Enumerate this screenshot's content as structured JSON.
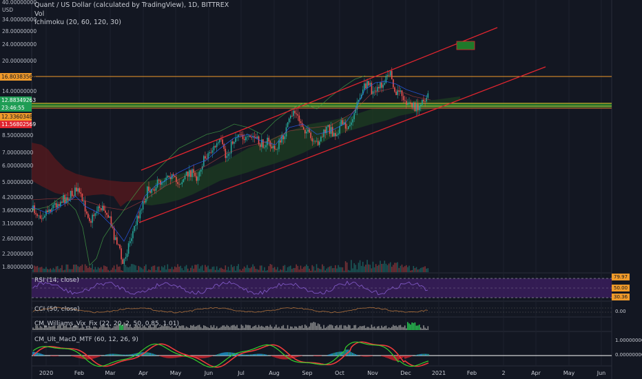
{
  "header": {
    "title": "Quant / US Dollar (calculated by TradingView), 1D, BITTREX",
    "volume_label": "Vol",
    "ichimoku_label": "Ichimoku (20, 60, 120, 30)"
  },
  "price_axis": {
    "currency": "USD",
    "ticks": [
      "40.00000000",
      "34.00000000",
      "28.00000000",
      "24.00000000",
      "20.00000000",
      "14.00000000",
      "8.50000000",
      "7.00000000",
      "6.00000000",
      "5.00000000",
      "4.20000000",
      "3.60000000",
      "3.10000000",
      "2.60000000",
      "2.20000000",
      "1.80000000"
    ],
    "tags": {
      "upper_level": "16.80383566",
      "last_price": "12.88349263",
      "countdown": "23:46:55",
      "mid_level": "12.33603483",
      "lower_level": "11.56802569"
    }
  },
  "time_axis": [
    "2020",
    "Feb",
    "Mar",
    "Apr",
    "May",
    "Jun",
    "Jul",
    "Aug",
    "Sep",
    "Oct",
    "Nov",
    "Dec",
    "2021",
    "Feb",
    "2",
    "Apr",
    "May",
    "Jun"
  ],
  "indicators": {
    "rsi": {
      "label": "RSI (14, close)",
      "upper": "79.97",
      "mid": "50.00",
      "lower": "30.36"
    },
    "cci": {
      "label": "CCI (50, close)",
      "value": "0.00"
    },
    "vix": {
      "label": "CM_Williams_Vix_Fix (22, 20, 2, 50, 0.85, 1.01)"
    },
    "macd": {
      "label": "CM_Ult_MacD_MTF (60, 12, 26, 9)",
      "upper": "1.00000000",
      "zero": "0.00000000"
    }
  },
  "colors": {
    "background": "#131722",
    "channel": "#e0252f",
    "level_orange": "#f09a2a",
    "band_green": "#1f7a2a",
    "up_candle": "#26a69a",
    "down_candle": "#ef5350",
    "rsi_fill": "#3a1d5c"
  }
}
